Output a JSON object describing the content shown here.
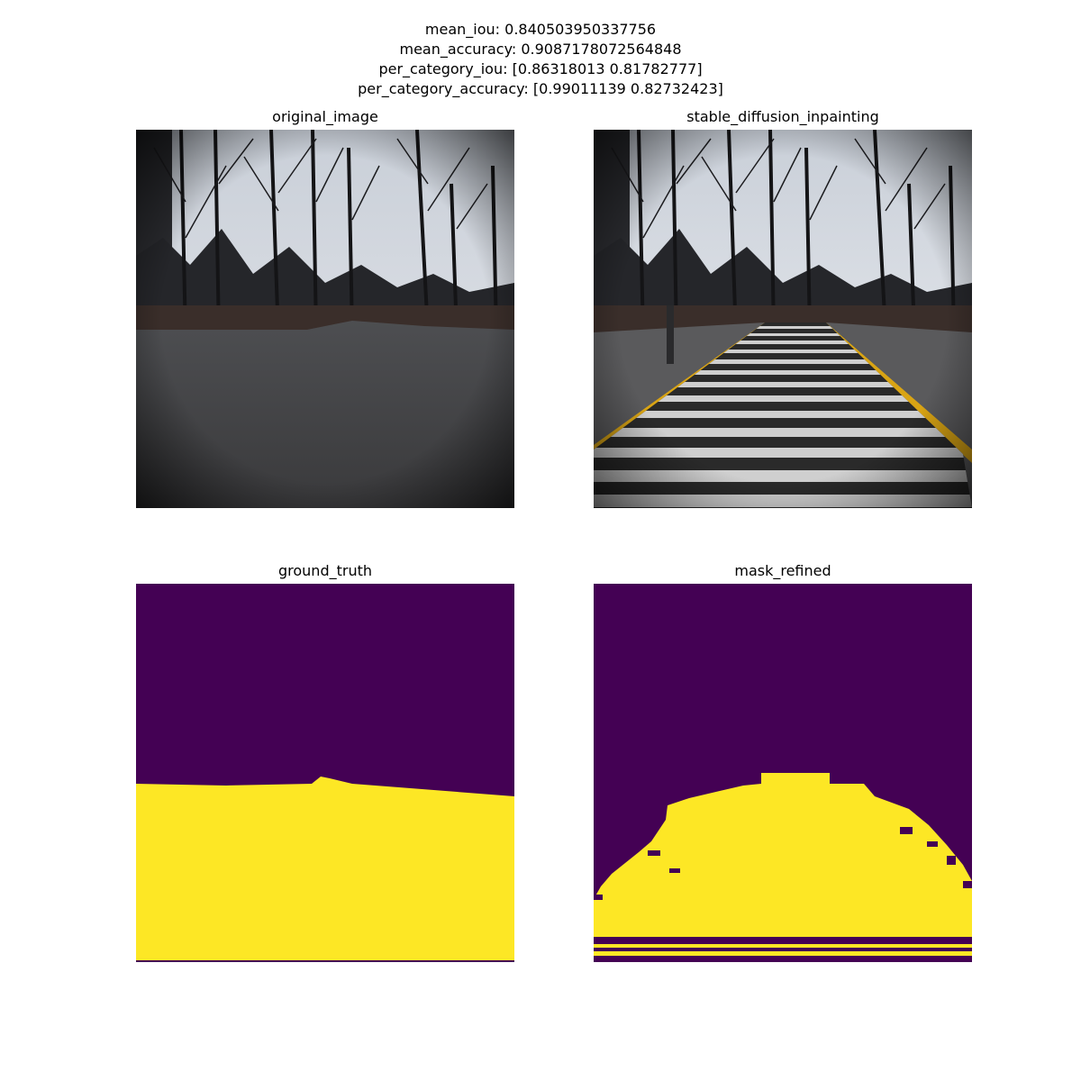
{
  "metrics": {
    "mean_iou": "mean_iou: 0.840503950337756",
    "mean_accuracy": "mean_accuracy: 0.9087178072564848",
    "per_category_iou": "per_category_iou: [0.86318013 0.81782777]",
    "per_category_accuracy": "per_category_accuracy: [0.99011139 0.82732423]"
  },
  "panels": {
    "original_image": {
      "title": "original_image"
    },
    "stable_diffusion_inpainting": {
      "title": "stable_diffusion_inpainting"
    },
    "ground_truth": {
      "title": "ground_truth"
    },
    "mask_refined": {
      "title": "mask_refined"
    }
  },
  "colors": {
    "mask_background": "#440154",
    "mask_foreground": "#fde725",
    "sky": "#d8dde4",
    "trees": "#1a1a1c",
    "road": "#4a4a4c",
    "yellow_line": "#d9a414",
    "walkway_light": "#c9c9c9",
    "walkway_dark": "#2a2a2a"
  }
}
